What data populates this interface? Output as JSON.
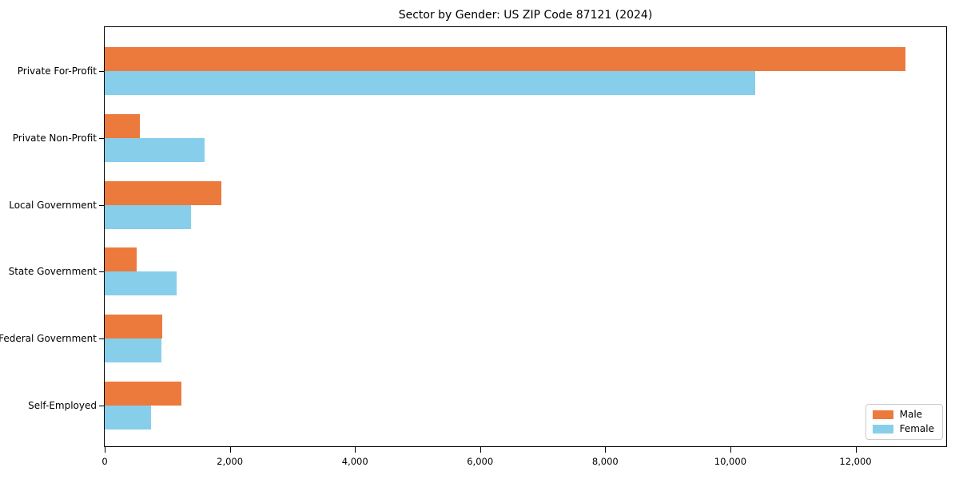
{
  "chart_data": {
    "type": "bar",
    "orientation": "horizontal",
    "title": "Sector by Gender: US ZIP Code 87121 (2024)",
    "categories": [
      "Private For-Profit",
      "Private Non-Profit",
      "Local Government",
      "State Government",
      "Federal Government",
      "Self-Employed"
    ],
    "series": [
      {
        "name": "Male",
        "color": "#EC7A3C",
        "values": [
          12800,
          560,
          1860,
          510,
          920,
          1220
        ]
      },
      {
        "name": "Female",
        "color": "#87CEEB",
        "values": [
          10400,
          1590,
          1380,
          1150,
          900,
          740
        ]
      }
    ],
    "xlabel": "",
    "ylabel": "",
    "xlim": [
      0,
      13450
    ],
    "x_ticks": [
      0,
      2000,
      4000,
      6000,
      8000,
      10000,
      12000
    ],
    "x_tick_labels": [
      "0",
      "2,000",
      "4,000",
      "6,000",
      "8,000",
      "10,000",
      "12,000"
    ],
    "grid": false,
    "legend": {
      "position": "lower-right",
      "entries": [
        "Male",
        "Female"
      ]
    }
  }
}
